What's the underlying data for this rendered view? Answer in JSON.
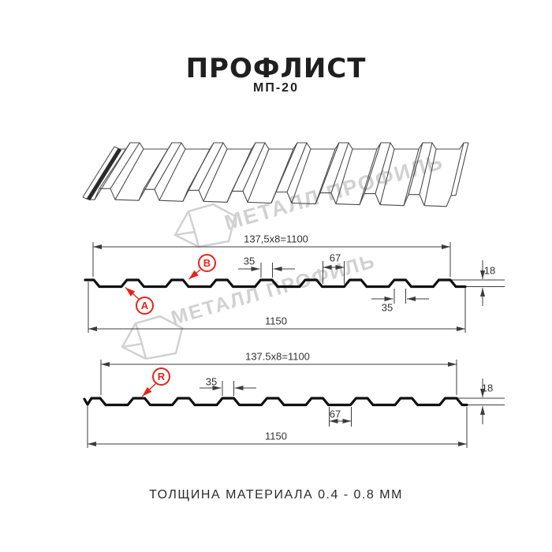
{
  "header": {
    "title": "ПРОФЛИСТ",
    "subtitle": "МП-20"
  },
  "watermark": {
    "brand": "МЕТАЛЛ ПРОФИЛЬ"
  },
  "colors": {
    "accent_red": "#e5231b",
    "drawing_line": "#3c3c3c",
    "profile_line": "#101010",
    "watermark_gray": "#c9c9c9"
  },
  "diagram_top": {
    "labels": {
      "modular_width": "137,5x8=1100",
      "overall_width": "1150",
      "rib_top_width": "35",
      "rib_bottom_width": "35",
      "valley_width": "67",
      "profile_height": "18",
      "marker_a": "А",
      "marker_b": "В"
    }
  },
  "diagram_bottom": {
    "labels": {
      "modular_width": "137.5x8=1100",
      "overall_width": "1150",
      "rib_top_width": "35",
      "valley_width": "67",
      "profile_height": "18",
      "marker_r": "R"
    }
  },
  "footer": {
    "text": "ТОЛЩИНА МАТЕРИАЛА 0.4 - 0.8 ММ"
  }
}
